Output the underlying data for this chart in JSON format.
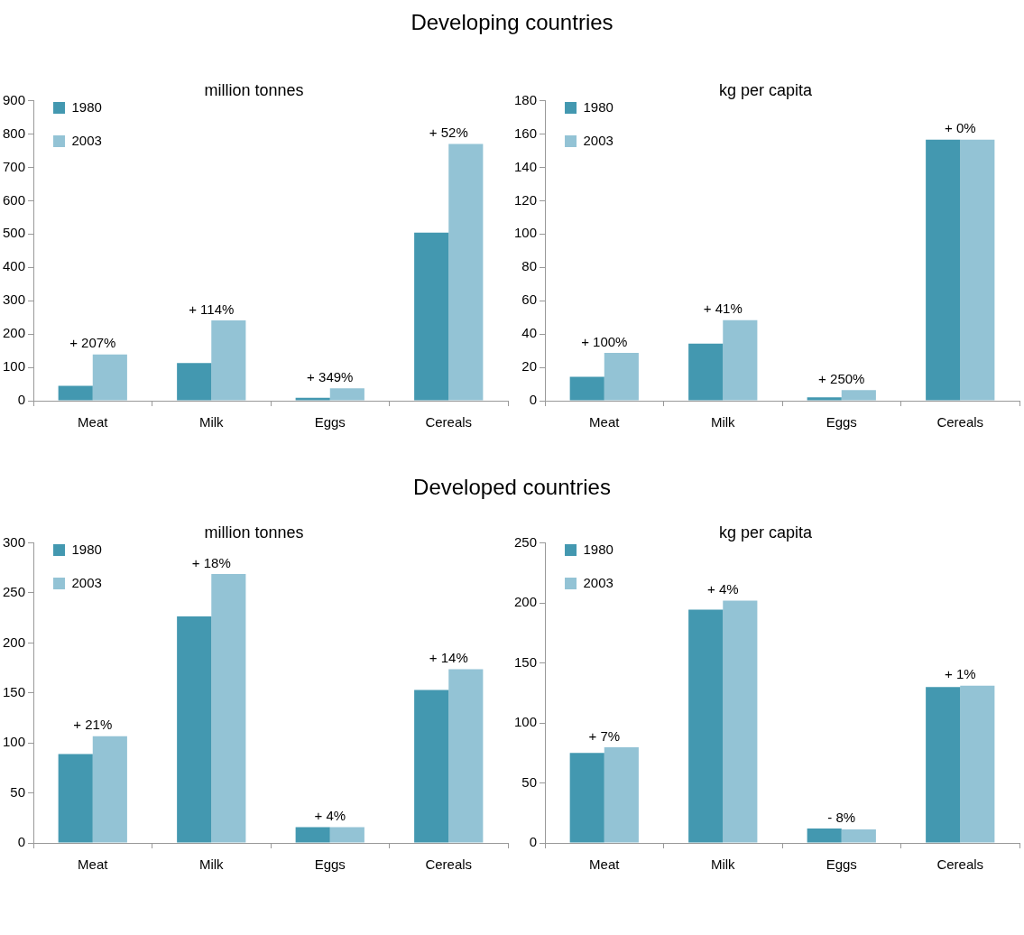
{
  "chart_data": [
    {
      "type": "other",
      "title": "Developing countries"
    },
    {
      "type": "bar",
      "title": "million tonnes",
      "categories": [
        "Meat",
        "Milk",
        "Eggs",
        "Cereals"
      ],
      "series": [
        {
          "name": "1980",
          "color": "#4398b0",
          "values": [
            45,
            113,
            9,
            504
          ]
        },
        {
          "name": "2003",
          "color": "#93c3d5",
          "values": [
            139,
            241,
            37,
            770
          ]
        }
      ],
      "ylim": [
        0,
        900
      ],
      "yticks": [
        0,
        100,
        200,
        300,
        400,
        500,
        600,
        700,
        800,
        900
      ],
      "legend": "top left",
      "annotations": [
        {
          "text": "+ 207%",
          "x": "Meat",
          "y": 139
        },
        {
          "text": "+ 114%",
          "x": "Milk",
          "y": 241
        },
        {
          "text": "+ 349%",
          "x": "Eggs",
          "y": 37
        },
        {
          "text": "+ 52%",
          "x": "Cereals",
          "y": 770
        }
      ]
    },
    {
      "type": "bar",
      "title": "kg per capita",
      "categories": [
        "Meat",
        "Milk",
        "Eggs",
        "Cereals"
      ],
      "series": [
        {
          "name": "1980",
          "color": "#4398b0",
          "values": [
            14.3,
            34.3,
            2,
            156.6
          ]
        },
        {
          "name": "2003",
          "color": "#93c3d5",
          "values": [
            28.7,
            48.3,
            6.3,
            156.6
          ]
        }
      ],
      "ylim": [
        0,
        180
      ],
      "yticks": [
        0,
        20,
        40,
        60,
        80,
        100,
        120,
        140,
        160,
        180
      ],
      "legend": "top left",
      "annotations": [
        {
          "text": "+ 100%",
          "x": "Meat",
          "y": 28.7
        },
        {
          "text": "+ 41%",
          "x": "Milk",
          "y": 48.3
        },
        {
          "text": "+ 250%",
          "x": "Eggs",
          "y": 6.3
        },
        {
          "text": "+ 0%",
          "x": "Cereals",
          "y": 156.6
        }
      ]
    },
    {
      "type": "other",
      "title": "Developed countries"
    },
    {
      "type": "bar",
      "title": "million tonnes",
      "categories": [
        "Meat",
        "Milk",
        "Eggs",
        "Cereals"
      ],
      "series": [
        {
          "name": "1980",
          "color": "#4398b0",
          "values": [
            89,
            226.6,
            15.7,
            153
          ]
        },
        {
          "name": "2003",
          "color": "#93c3d5",
          "values": [
            106.7,
            269,
            15.7,
            173.7
          ]
        }
      ],
      "ylim": [
        0,
        300
      ],
      "yticks": [
        0,
        50,
        100,
        150,
        200,
        250,
        300
      ],
      "legend": "top left",
      "annotations": [
        {
          "text": "+ 21%",
          "x": "Meat",
          "y": 106.7
        },
        {
          "text": "+ 18%",
          "x": "Milk",
          "y": 269
        },
        {
          "text": "+ 4%",
          "x": "Eggs",
          "y": 15.7
        },
        {
          "text": "+ 14%",
          "x": "Cereals",
          "y": 173.7
        }
      ]
    },
    {
      "type": "bar",
      "title": "kg per capita",
      "categories": [
        "Meat",
        "Milk",
        "Eggs",
        "Cereals"
      ],
      "series": [
        {
          "name": "1980",
          "color": "#4398b0",
          "values": [
            75,
            194.5,
            12,
            130
          ]
        },
        {
          "name": "2003",
          "color": "#93c3d5",
          "values": [
            79.7,
            202,
            11.3,
            131
          ]
        }
      ],
      "ylim": [
        0,
        250
      ],
      "yticks": [
        0,
        50,
        100,
        150,
        200,
        250
      ],
      "legend": "top left",
      "annotations": [
        {
          "text": "+ 7%",
          "x": "Meat",
          "y": 79.7
        },
        {
          "text": "+ 4%",
          "x": "Milk",
          "y": 202
        },
        {
          "text": "- 8%",
          "x": "Eggs",
          "y": 12
        },
        {
          "text": "+ 1%",
          "x": "Cereals",
          "y": 131
        }
      ]
    }
  ]
}
